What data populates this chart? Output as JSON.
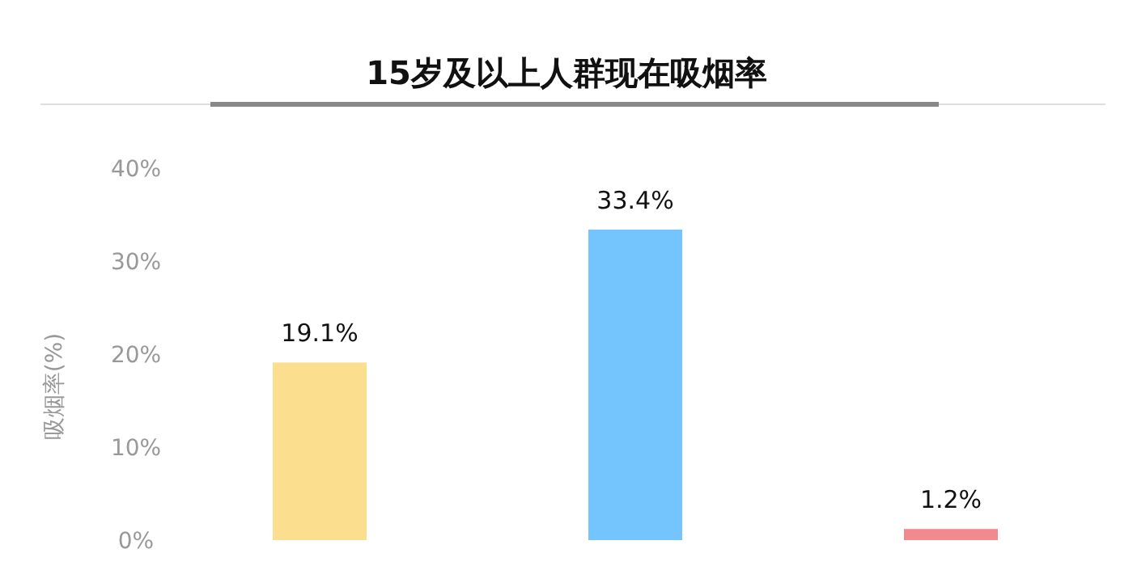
{
  "chart_data": {
    "type": "bar",
    "title": "15岁及以上人群现在吸烟率",
    "ylabel": "吸烟率(%)",
    "categories": [
      null,
      null,
      null
    ],
    "values": [
      19.1,
      33.4,
      1.2
    ],
    "colors": [
      "#fbdf8f",
      "#74c5fd",
      "#f08a8e"
    ],
    "value_labels": [
      "19.1%",
      "33.4%",
      "1.2%"
    ],
    "ylim": [
      0,
      40
    ],
    "yticks": [
      {
        "value": 0,
        "label": "0%"
      },
      {
        "value": 10,
        "label": "10%"
      },
      {
        "value": 20,
        "label": "20%"
      },
      {
        "value": 30,
        "label": "30%"
      },
      {
        "value": 40,
        "label": "40%"
      }
    ]
  }
}
